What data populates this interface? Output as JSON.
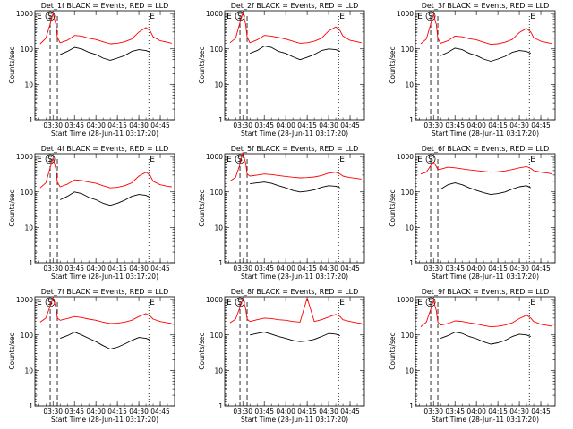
{
  "figure": {
    "xlabel": "Start Time (28-Jun-11 03:17:20)",
    "ylabel": "Counts/sec",
    "x_ticks": [
      "03:30",
      "03:45",
      "04:00",
      "04:15",
      "04:30",
      "04:45"
    ],
    "y_ticks": [
      "1",
      "10",
      "100",
      "1000"
    ],
    "marker_labels": [
      "E",
      "S",
      "E"
    ]
  },
  "colors": {
    "events": "#000000",
    "lld": "#ff0000"
  },
  "chart_data": [
    {
      "type": "line",
      "title": "Det_1f BLACK = Events, RED = LLD",
      "xlabel": "Start Time (28-Jun-11 03:17:20)",
      "ylabel": "Counts/sec",
      "y_scale": "log",
      "ylim": [
        1,
        1200
      ],
      "xlim": [
        "03:17:20",
        "04:55"
      ],
      "x": [
        "03:21",
        "03:25",
        "03:28",
        "03:30",
        "03:32",
        "03:33",
        "03:35",
        "03:40",
        "03:45",
        "03:50",
        "03:55",
        "04:00",
        "04:05",
        "04:10",
        "04:15",
        "04:20",
        "04:25",
        "04:30",
        "04:35",
        "04:38",
        "04:40",
        "04:45",
        "04:50",
        "04:53"
      ],
      "series": [
        {
          "name": "LLD",
          "values": [
            140,
            200,
            500,
            1000,
            500,
            210,
            150,
            175,
            240,
            230,
            200,
            185,
            160,
            140,
            145,
            160,
            190,
            300,
            400,
            320,
            220,
            170,
            155,
            145
          ]
        },
        {
          "name": "Events",
          "values": [
            null,
            null,
            null,
            null,
            null,
            null,
            70,
            85,
            110,
            100,
            80,
            70,
            55,
            48,
            55,
            65,
            85,
            95,
            90,
            80,
            null,
            null,
            null,
            null
          ]
        }
      ],
      "markers": [
        {
          "label": "E",
          "x": "03:18",
          "style": "dotted"
        },
        {
          "label": "S",
          "x": "03:28",
          "style": "dashed"
        },
        {
          "label": "",
          "x": "03:33",
          "style": "dashed"
        },
        {
          "label": "E",
          "x": "04:37",
          "style": "dotted"
        }
      ]
    },
    {
      "type": "line",
      "title": "Det_2f BLACK = Events, RED = LLD",
      "xlabel": "Start Time (28-Jun-11 03:17:20)",
      "ylabel": "Counts/sec",
      "y_scale": "log",
      "ylim": [
        1,
        1200
      ],
      "xlim": [
        "03:17:20",
        "04:55"
      ],
      "x": [
        "03:21",
        "03:25",
        "03:28",
        "03:30",
        "03:32",
        "03:33",
        "03:35",
        "03:40",
        "03:45",
        "03:50",
        "03:55",
        "04:00",
        "04:05",
        "04:10",
        "04:15",
        "04:20",
        "04:25",
        "04:30",
        "04:35",
        "04:38",
        "04:40",
        "04:45",
        "04:50",
        "04:53"
      ],
      "series": [
        {
          "name": "LLD",
          "values": [
            150,
            200,
            550,
            1050,
            500,
            220,
            150,
            180,
            240,
            230,
            210,
            190,
            165,
            145,
            150,
            165,
            200,
            320,
            420,
            330,
            230,
            175,
            160,
            150
          ]
        },
        {
          "name": "Events",
          "values": [
            null,
            null,
            null,
            null,
            null,
            null,
            75,
            90,
            120,
            110,
            85,
            75,
            60,
            50,
            58,
            70,
            90,
            100,
            95,
            85,
            null,
            null,
            null,
            null
          ]
        }
      ],
      "markers": [
        {
          "label": "E",
          "x": "03:18",
          "style": "dotted"
        },
        {
          "label": "S",
          "x": "03:28",
          "style": "dashed"
        },
        {
          "label": "",
          "x": "03:33",
          "style": "dashed"
        },
        {
          "label": "E",
          "x": "04:37",
          "style": "dotted"
        }
      ]
    },
    {
      "type": "line",
      "title": "Det_3f BLACK = Events, RED = LLD",
      "xlabel": "Start Time (28-Jun-11 03:17:20)",
      "ylabel": "Counts/sec",
      "y_scale": "log",
      "ylim": [
        1,
        1200
      ],
      "xlim": [
        "03:17:20",
        "04:55"
      ],
      "x": [
        "03:21",
        "03:25",
        "03:28",
        "03:30",
        "03:32",
        "03:33",
        "03:35",
        "03:40",
        "03:45",
        "03:50",
        "03:55",
        "04:00",
        "04:05",
        "04:10",
        "04:15",
        "04:20",
        "04:25",
        "04:30",
        "04:35",
        "04:38",
        "04:40",
        "04:45",
        "04:50",
        "04:53"
      ],
      "series": [
        {
          "name": "LLD",
          "values": [
            140,
            190,
            500,
            950,
            480,
            200,
            145,
            170,
            230,
            220,
            195,
            180,
            155,
            135,
            140,
            155,
            185,
            290,
            380,
            300,
            210,
            165,
            150,
            140
          ]
        },
        {
          "name": "Events",
          "values": [
            null,
            null,
            null,
            null,
            null,
            null,
            65,
            80,
            105,
            95,
            75,
            65,
            52,
            45,
            52,
            62,
            80,
            90,
            85,
            75,
            null,
            null,
            null,
            null
          ]
        }
      ],
      "markers": [
        {
          "label": "E",
          "x": "03:18",
          "style": "dotted"
        },
        {
          "label": "S",
          "x": "03:28",
          "style": "dashed"
        },
        {
          "label": "",
          "x": "03:33",
          "style": "dashed"
        },
        {
          "label": "E",
          "x": "04:37",
          "style": "dotted"
        }
      ]
    },
    {
      "type": "line",
      "title": "Det_4f BLACK = Events, RED = LLD",
      "xlabel": "Start Time (28-Jun-11 03:17:20)",
      "ylabel": "Counts/sec",
      "y_scale": "log",
      "ylim": [
        1,
        1200
      ],
      "xlim": [
        "03:17:20",
        "04:55"
      ],
      "x": [
        "03:21",
        "03:25",
        "03:28",
        "03:30",
        "03:32",
        "03:33",
        "03:35",
        "03:40",
        "03:45",
        "03:50",
        "03:55",
        "04:00",
        "04:05",
        "04:10",
        "04:15",
        "04:20",
        "04:25",
        "04:30",
        "04:35",
        "04:38",
        "04:40",
        "04:45",
        "04:50",
        "04:53"
      ],
      "series": [
        {
          "name": "LLD",
          "values": [
            130,
            180,
            480,
            900,
            450,
            190,
            140,
            165,
            220,
            210,
            190,
            175,
            150,
            130,
            135,
            150,
            180,
            280,
            360,
            290,
            200,
            160,
            145,
            140
          ]
        },
        {
          "name": "Events",
          "values": [
            null,
            null,
            null,
            null,
            null,
            null,
            60,
            75,
            100,
            90,
            70,
            60,
            48,
            42,
            48,
            58,
            75,
            85,
            80,
            70,
            null,
            null,
            null,
            null
          ]
        }
      ],
      "markers": [
        {
          "label": "E",
          "x": "03:18",
          "style": "dotted"
        },
        {
          "label": "S",
          "x": "03:28",
          "style": "dashed"
        },
        {
          "label": "",
          "x": "03:33",
          "style": "dashed"
        },
        {
          "label": "E",
          "x": "04:37",
          "style": "dotted"
        }
      ]
    },
    {
      "type": "line",
      "title": "Det_5f BLACK = Events, RED = LLD",
      "xlabel": "Start Time (28-Jun-11 03:17:20)",
      "ylabel": "Counts/sec",
      "y_scale": "log",
      "ylim": [
        1,
        1200
      ],
      "xlim": [
        "03:17:20",
        "04:55"
      ],
      "x": [
        "03:21",
        "03:25",
        "03:28",
        "03:30",
        "03:32",
        "03:33",
        "03:35",
        "03:40",
        "03:45",
        "03:50",
        "03:55",
        "04:00",
        "04:05",
        "04:10",
        "04:15",
        "04:20",
        "04:25",
        "04:30",
        "04:35",
        "04:38",
        "04:40",
        "04:45",
        "04:50",
        "04:53"
      ],
      "series": [
        {
          "name": "LLD",
          "values": [
            200,
            260,
            600,
            1300,
            650,
            320,
            280,
            300,
            320,
            310,
            290,
            275,
            260,
            250,
            255,
            265,
            290,
            340,
            360,
            320,
            280,
            255,
            240,
            230
          ]
        },
        {
          "name": "Events",
          "values": [
            null,
            null,
            null,
            null,
            null,
            null,
            170,
            180,
            190,
            175,
            150,
            130,
            110,
            100,
            105,
            115,
            135,
            150,
            145,
            130,
            null,
            null,
            null,
            null
          ]
        }
      ],
      "markers": [
        {
          "label": "E",
          "x": "03:18",
          "style": "dotted"
        },
        {
          "label": "S",
          "x": "03:28",
          "style": "dashed"
        },
        {
          "label": "",
          "x": "03:33",
          "style": "dashed"
        },
        {
          "label": "E",
          "x": "04:37",
          "style": "dotted"
        }
      ]
    },
    {
      "type": "line",
      "title": "Det_6f BLACK = Events, RED = LLD",
      "xlabel": "Start Time (28-Jun-11 03:17:20)",
      "ylabel": "Counts/sec",
      "y_scale": "log",
      "ylim": [
        1,
        1200
      ],
      "xlim": [
        "03:17:20",
        "04:55"
      ],
      "x": [
        "03:21",
        "03:25",
        "03:28",
        "03:30",
        "03:32",
        "03:33",
        "03:35",
        "03:40",
        "03:45",
        "03:50",
        "03:55",
        "04:00",
        "04:05",
        "04:10",
        "04:15",
        "04:20",
        "04:25",
        "04:30",
        "04:35",
        "04:38",
        "04:40",
        "04:45",
        "04:50",
        "04:53"
      ],
      "series": [
        {
          "name": "LLD",
          "values": [
            320,
            360,
            550,
            700,
            520,
            430,
            440,
            500,
            480,
            450,
            420,
            400,
            380,
            360,
            370,
            390,
            430,
            480,
            520,
            460,
            400,
            360,
            340,
            320
          ]
        },
        {
          "name": "Events",
          "values": [
            null,
            null,
            null,
            null,
            null,
            null,
            120,
            160,
            180,
            160,
            130,
            110,
            95,
            85,
            90,
            100,
            120,
            140,
            150,
            130,
            null,
            null,
            null,
            null
          ]
        }
      ],
      "markers": [
        {
          "label": "E",
          "x": "03:18",
          "style": "dotted"
        },
        {
          "label": "S",
          "x": "03:28",
          "style": "dashed"
        },
        {
          "label": "",
          "x": "03:33",
          "style": "dashed"
        },
        {
          "label": "E",
          "x": "04:37",
          "style": "dotted"
        }
      ]
    },
    {
      "type": "line",
      "title": "Det_7f BLACK = Events, RED = LLD",
      "xlabel": "Start Time (28-Jun-11 03:17:20)",
      "ylabel": "Counts/sec",
      "y_scale": "log",
      "ylim": [
        1,
        1200
      ],
      "xlim": [
        "03:17:20",
        "04:55"
      ],
      "x": [
        "03:21",
        "03:25",
        "03:28",
        "03:30",
        "03:32",
        "03:33",
        "03:35",
        "03:40",
        "03:45",
        "03:50",
        "03:55",
        "04:00",
        "04:05",
        "04:10",
        "04:15",
        "04:20",
        "04:25",
        "04:30",
        "04:35",
        "04:38",
        "04:40",
        "04:45",
        "04:50",
        "04:53"
      ],
      "series": [
        {
          "name": "LLD",
          "values": [
            230,
            300,
            650,
            1100,
            600,
            300,
            260,
            290,
            330,
            310,
            280,
            260,
            230,
            210,
            215,
            230,
            260,
            330,
            400,
            340,
            280,
            240,
            220,
            210
          ]
        },
        {
          "name": "Events",
          "values": [
            null,
            null,
            null,
            null,
            null,
            null,
            80,
            95,
            120,
            100,
            80,
            65,
            50,
            40,
            45,
            55,
            70,
            85,
            80,
            72,
            null,
            null,
            null,
            null
          ]
        }
      ],
      "markers": [
        {
          "label": "E",
          "x": "03:18",
          "style": "dotted"
        },
        {
          "label": "S",
          "x": "03:28",
          "style": "dashed"
        },
        {
          "label": "",
          "x": "03:33",
          "style": "dashed"
        },
        {
          "label": "E",
          "x": "04:37",
          "style": "dotted"
        }
      ]
    },
    {
      "type": "line",
      "title": "Det_8f BLACK = Events, RED = LLD",
      "xlabel": "Start Time (28-Jun-11 03:17:20)",
      "ylabel": "Counts/sec",
      "y_scale": "log",
      "ylim": [
        1,
        1200
      ],
      "xlim": [
        "03:17:20",
        "04:55"
      ],
      "x": [
        "03:21",
        "03:25",
        "03:28",
        "03:30",
        "03:32",
        "03:33",
        "03:35",
        "03:40",
        "03:45",
        "03:50",
        "03:55",
        "04:00",
        "04:05",
        "04:10",
        "04:15",
        "04:20",
        "04:25",
        "04:30",
        "04:35",
        "04:38",
        "04:40",
        "04:45",
        "04:50",
        "04:53"
      ],
      "series": [
        {
          "name": "LLD",
          "values": [
            220,
            280,
            600,
            1050,
            550,
            280,
            240,
            270,
            300,
            290,
            270,
            260,
            240,
            230,
            1100,
            240,
            270,
            320,
            380,
            330,
            270,
            240,
            220,
            210
          ]
        },
        {
          "name": "Events",
          "values": [
            null,
            null,
            null,
            null,
            null,
            null,
            100,
            110,
            120,
            105,
            90,
            80,
            70,
            65,
            68,
            75,
            90,
            110,
            105,
            95,
            null,
            null,
            null,
            null
          ]
        }
      ],
      "markers": [
        {
          "label": "E",
          "x": "03:18",
          "style": "dotted"
        },
        {
          "label": "S",
          "x": "03:28",
          "style": "dashed"
        },
        {
          "label": "",
          "x": "03:33",
          "style": "dashed"
        },
        {
          "label": "E",
          "x": "04:37",
          "style": "dotted"
        }
      ]
    },
    {
      "type": "line",
      "title": "Det_9f BLACK = Events, RED = LLD",
      "xlabel": "Start Time (28-Jun-11 03:17:20)",
      "ylabel": "Counts/sec",
      "y_scale": "log",
      "ylim": [
        1,
        1200
      ],
      "xlim": [
        "03:17:20",
        "04:55"
      ],
      "x": [
        "03:21",
        "03:25",
        "03:28",
        "03:30",
        "03:32",
        "03:33",
        "03:35",
        "03:40",
        "03:45",
        "03:50",
        "03:55",
        "04:00",
        "04:05",
        "04:10",
        "04:15",
        "04:20",
        "04:25",
        "04:30",
        "04:35",
        "04:38",
        "04:40",
        "04:45",
        "04:50",
        "04:53"
      ],
      "series": [
        {
          "name": "LLD",
          "values": [
            170,
            230,
            520,
            950,
            480,
            230,
            190,
            210,
            250,
            240,
            220,
            205,
            185,
            170,
            175,
            190,
            220,
            290,
            360,
            300,
            240,
            200,
            185,
            175
          ]
        },
        {
          "name": "Events",
          "values": [
            null,
            null,
            null,
            null,
            null,
            null,
            80,
            95,
            120,
            110,
            90,
            78,
            64,
            55,
            60,
            70,
            90,
            105,
            100,
            90,
            null,
            null,
            null,
            null
          ]
        }
      ],
      "markers": [
        {
          "label": "E",
          "x": "03:18",
          "style": "dotted"
        },
        {
          "label": "S",
          "x": "03:28",
          "style": "dashed"
        },
        {
          "label": "",
          "x": "03:33",
          "style": "dashed"
        },
        {
          "label": "E",
          "x": "04:37",
          "style": "dotted"
        }
      ]
    }
  ]
}
